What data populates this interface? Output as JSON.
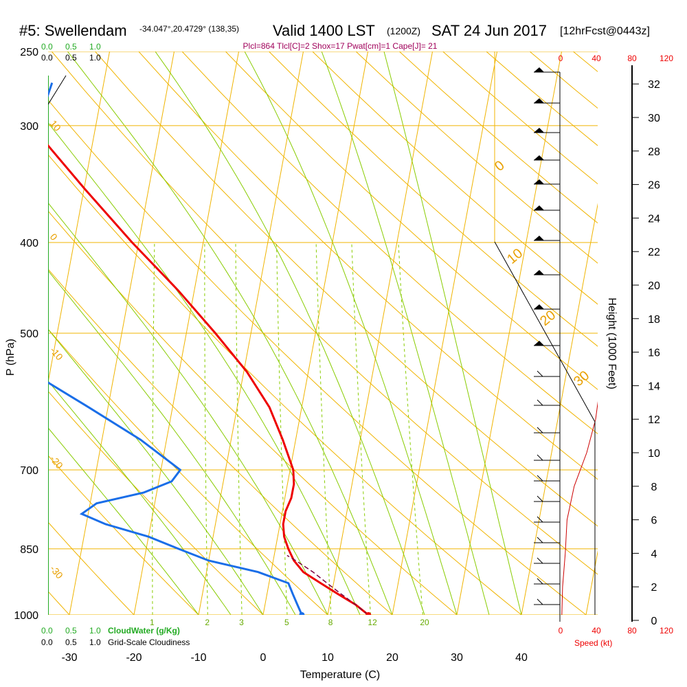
{
  "header": {
    "station": "#5: Swellendam",
    "coords": "-34.047°,20.4729° (138,35)",
    "valid": "Valid 1400 LST",
    "zulu": "(1200Z)",
    "date": "SAT 24 Jun 2017",
    "forecast": "[12hrFcst@0443z]",
    "indices": "Plcl=864 Tlcl[C]=2 Shox=17 Pwat[cm]=1 Cape[J]= 21"
  },
  "legend": {
    "cloudwater_ticks": [
      "0.0",
      "0.5",
      "1.0"
    ],
    "cloudiness_ticks": [
      "0.0",
      "0.5",
      "1.0"
    ],
    "cloudwater_label": "CloudWater (g/Kg)",
    "cloudiness_label": "Grid-Scale Cloudiness",
    "speed_label": "Speed (kt)",
    "speed_ticks": [
      "0",
      "40",
      "80",
      "120"
    ]
  },
  "colors": {
    "isobar": "#f0b400",
    "isotherm": "#f0b400",
    "dry_adiabat": "#f0b400",
    "moist_adiabat": "#88cc00",
    "mixing_ratio": "#88cc00",
    "temperature": "#ee0000",
    "dewpoint": "#1a6ee8",
    "parcel": "#7a0040",
    "cloud": "#22aa22"
  },
  "chart_data": {
    "type": "line",
    "title": "#5: Swellendam",
    "xlabel": "Temperature (C)",
    "ylabel": "P (hPa)",
    "y2label": "Height (1000 Feet)",
    "xlim": [
      -35,
      45
    ],
    "ylim_hpa": [
      1000,
      250
    ],
    "x_ticks": [
      "-30",
      "-20",
      "-10",
      "0",
      "10",
      "20",
      "30",
      "40"
    ],
    "p_ticks": [
      "250",
      "300",
      "400",
      "500",
      "700",
      "850",
      "1000"
    ],
    "height_ticks": [
      "0",
      "2",
      "4",
      "6",
      "8",
      "10",
      "12",
      "14",
      "16",
      "18",
      "20",
      "22",
      "24",
      "26",
      "28",
      "30",
      "32"
    ],
    "dry_adiabat_labels": [
      "10",
      "0",
      "-10",
      "-20",
      "-30",
      "0",
      "10",
      "20",
      "30"
    ],
    "mixing_ratio_labels": [
      "1",
      "2",
      "3",
      "5",
      "8",
      "12",
      "20"
    ],
    "series": [
      {
        "name": "temperature",
        "p": [
          1000,
          975,
          950,
          925,
          900,
          875,
          850,
          825,
          800,
          775,
          750,
          725,
          700,
          650,
          600,
          550,
          500,
          450,
          400,
          350,
          300,
          270
        ],
        "t": [
          16.3,
          14.0,
          11.0,
          8.0,
          5.0,
          3.2,
          2.0,
          1.0,
          0.5,
          0.5,
          1.0,
          1.0,
          0.5,
          -2.0,
          -5.0,
          -9.5,
          -15.5,
          -22.5,
          -31.0,
          -40.0,
          -50.0,
          -56.0
        ]
      },
      {
        "name": "dewpoint",
        "p": [
          1000,
          975,
          950,
          925,
          900,
          875,
          850,
          825,
          800,
          780,
          760,
          740,
          720,
          700,
          650,
          600,
          550,
          500,
          450,
          400,
          350,
          300,
          270
        ],
        "t": [
          6.0,
          5.0,
          4.0,
          3.0,
          -2.0,
          -10.0,
          -15.0,
          -20.0,
          -27.0,
          -31.0,
          -29.0,
          -22.0,
          -18.0,
          -17.0,
          -24.0,
          -33.0,
          -43.0,
          -52.0,
          -57.0,
          -56.0,
          -52.0,
          -49.0,
          -48.0
        ]
      },
      {
        "name": "parcel",
        "p": [
          1000,
          975,
          950,
          925,
          900,
          875,
          864
        ],
        "t": [
          16.3,
          14.0,
          11.5,
          9.0,
          6.5,
          3.5,
          2.0
        ]
      },
      {
        "name": "wind_speed",
        "height_kft": [
          0,
          2,
          4,
          6,
          8,
          10,
          12,
          14,
          16,
          18,
          20,
          22,
          24,
          26,
          28,
          30,
          32
        ],
        "speed_kt": [
          2,
          3,
          6,
          8,
          16,
          30,
          40,
          45,
          55,
          70,
          85,
          95,
          105,
          110,
          112,
          115,
          120
        ]
      }
    ],
    "surface_temperature": 16.3,
    "surface_dewpoint": 6.0
  }
}
